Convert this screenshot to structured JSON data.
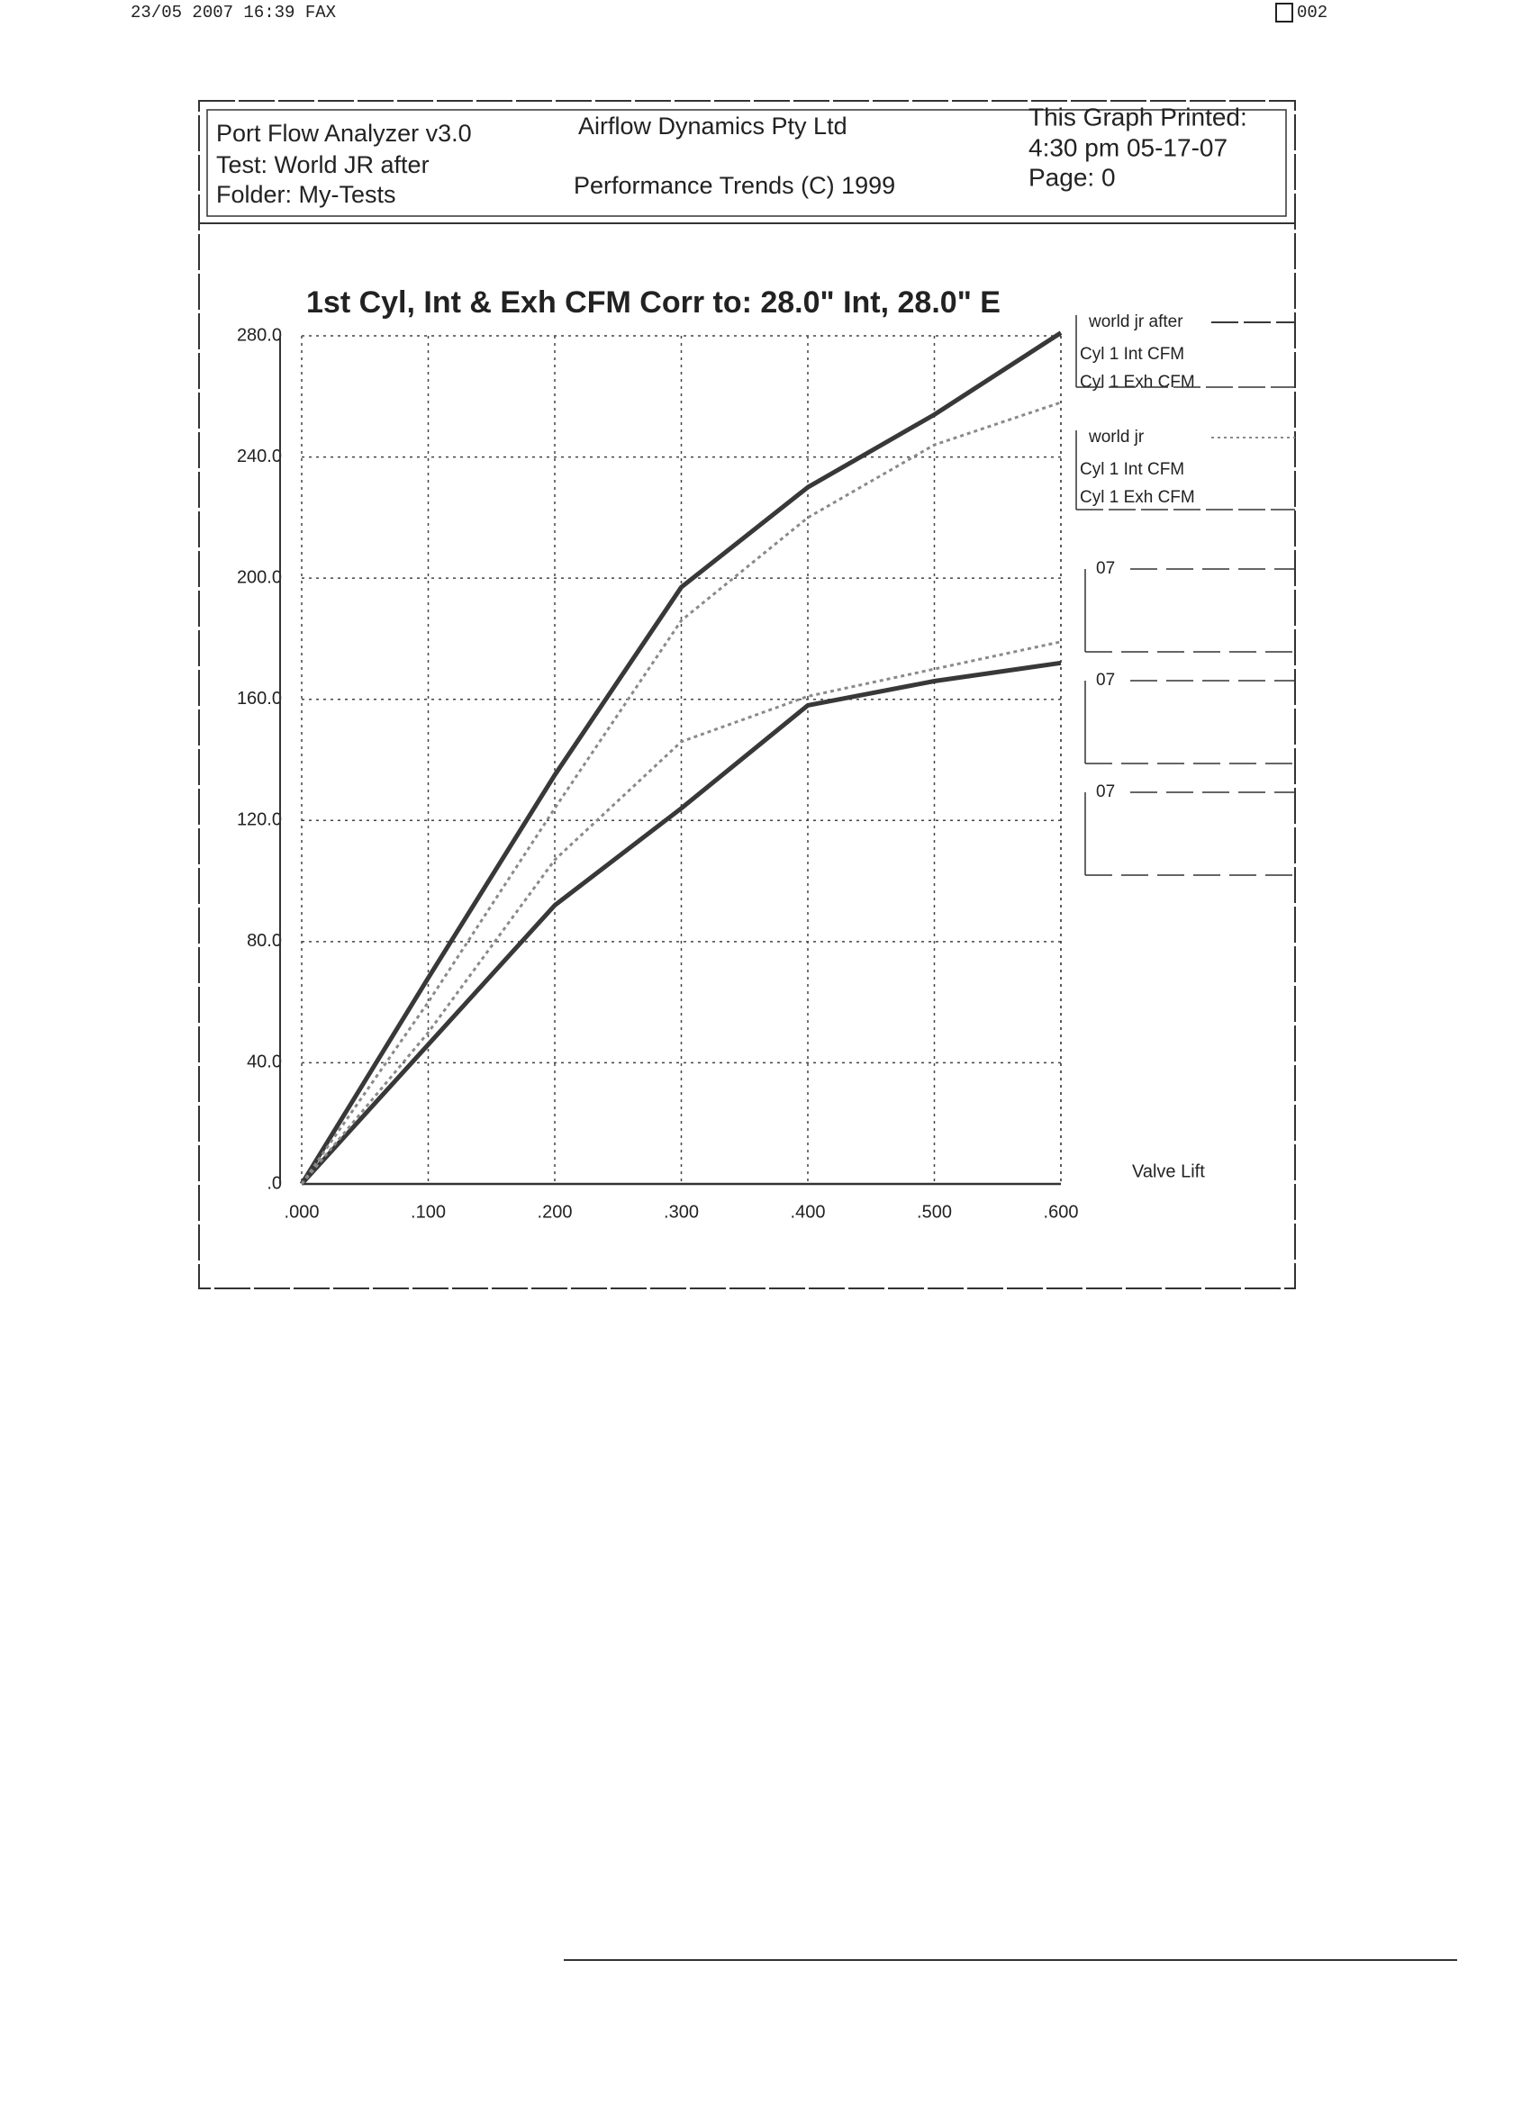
{
  "fax_header": {
    "stamp": "23/05 2007 16:39 FAX",
    "page": "002"
  },
  "report_header": {
    "program": "Port Flow Analyzer v3.0",
    "test": "Test: World JR after",
    "folder": "Folder: My-Tests",
    "company": "Airflow Dynamics Pty Ltd",
    "copyright": "Performance Trends (C) 1999",
    "printed_label": "This Graph Printed:",
    "printed_time": "4:30 pm 05-17-07",
    "page": "Page: 0"
  },
  "chart_data": {
    "type": "line",
    "title": "1st Cyl, Int & Exh CFM   Corr to: 28.0\" Int, 28.0\" E",
    "x_label": "Valve Lift",
    "x": [
      0,
      0.1,
      0.2,
      0.3,
      0.4,
      0.5,
      0.6
    ],
    "xlim": [
      0,
      0.6
    ],
    "xticks": [
      {
        "value": 0,
        "label": ".000"
      },
      {
        "value": 0.1,
        "label": ".100"
      },
      {
        "value": 0.2,
        "label": ".200"
      },
      {
        "value": 0.3,
        "label": ".300"
      },
      {
        "value": 0.4,
        "label": ".400"
      },
      {
        "value": 0.5,
        "label": ".500"
      },
      {
        "value": 0.6,
        "label": ".600"
      }
    ],
    "ylim": [
      0,
      280
    ],
    "yticks": [
      {
        "value": 0,
        "label": ".0"
      },
      {
        "value": 40,
        "label": "40.0"
      },
      {
        "value": 80,
        "label": "80.0"
      },
      {
        "value": 120,
        "label": "120.0"
      },
      {
        "value": 160,
        "label": "160.0"
      },
      {
        "value": 200,
        "label": "200.0"
      },
      {
        "value": 240,
        "label": "240.0"
      },
      {
        "value": 280,
        "label": "280.0"
      }
    ],
    "grid": true,
    "series": [
      {
        "test": "world jr after",
        "name": "Cyl 1 Int CFM",
        "color": "#383838",
        "style": "solid",
        "values": [
          0,
          68,
          135,
          197,
          230,
          254,
          281
        ]
      },
      {
        "test": "world jr after",
        "name": "Cyl 1 Exh CFM",
        "color": "#383838",
        "style": "solid",
        "values": [
          0,
          46,
          92,
          124,
          158,
          166,
          172
        ]
      },
      {
        "test": "world jr",
        "name": "Cyl 1 Int CFM",
        "color": "#8a8a8a",
        "style": "dotted",
        "values": [
          0,
          60,
          124,
          186,
          220,
          244,
          258
        ]
      },
      {
        "test": "world jr",
        "name": "Cyl 1 Exh CFM",
        "color": "#8a8a8a",
        "style": "dotted",
        "values": [
          0,
          50,
          107,
          146,
          161,
          170,
          179
        ]
      }
    ],
    "empty_legend_entries": [
      "07",
      "07",
      "07"
    ]
  }
}
